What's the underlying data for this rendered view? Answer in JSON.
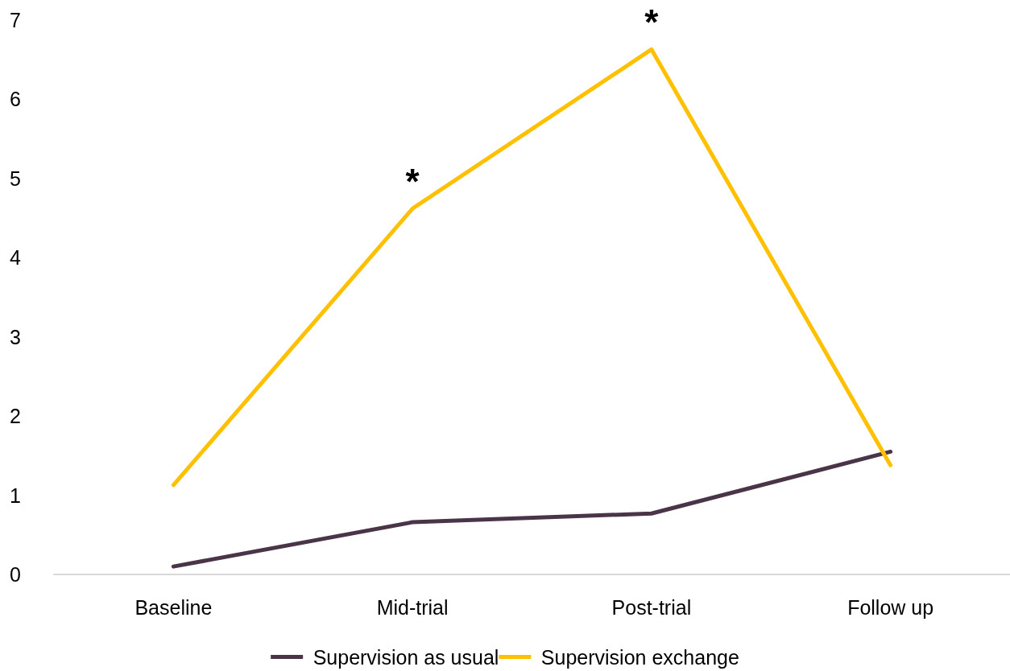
{
  "chart_data": {
    "type": "line",
    "categories": [
      "Baseline",
      "Mid-trial",
      "Post-trial",
      "Follow up"
    ],
    "series": [
      {
        "name": "Supervision as usual",
        "color": "#4a3548",
        "values": [
          0.1,
          0.66,
          0.77,
          1.55
        ]
      },
      {
        "name": "Supervision exchange",
        "color": "#ffc000",
        "values": [
          1.13,
          4.62,
          6.63,
          1.38
        ]
      }
    ],
    "ylim": [
      0,
      7
    ],
    "yticks": [
      0,
      1,
      2,
      3,
      4,
      5,
      6,
      7
    ],
    "grid": false,
    "legend": "bottom",
    "marker": "none",
    "line_style": "solid",
    "annotations": [
      {
        "text": "*",
        "x": "Mid-trial",
        "y": 4.62
      },
      {
        "text": "*",
        "x": "Post-trial",
        "y": 6.63
      }
    ]
  }
}
